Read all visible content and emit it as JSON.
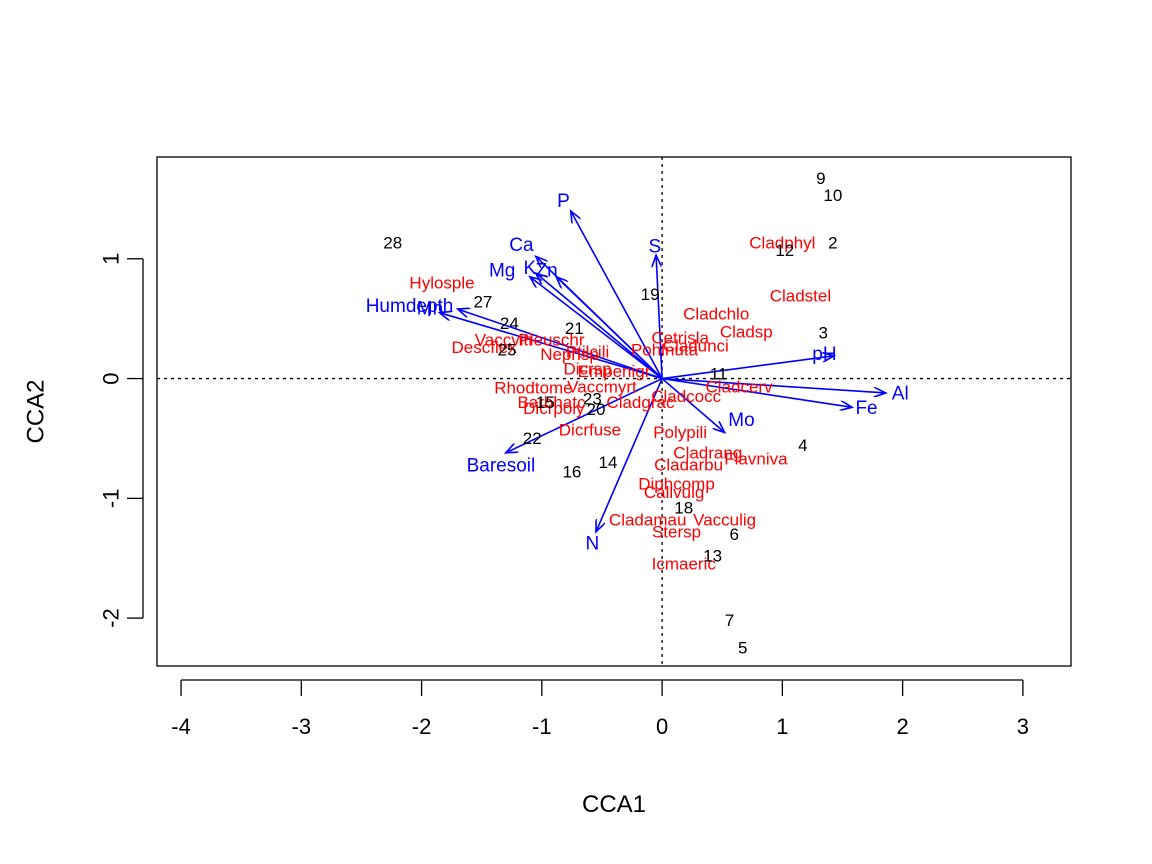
{
  "chart_data": {
    "type": "scatter",
    "title": "",
    "xlabel": "CCA1",
    "ylabel": "CCA2",
    "xlim": [
      -4.2,
      3.4
    ],
    "ylim": [
      -2.4,
      1.85
    ],
    "xticks": [
      -4,
      -3,
      -2,
      -1,
      0,
      1,
      2,
      3
    ],
    "yticks": [
      -2,
      -1,
      0,
      1
    ],
    "xtick_labels": [
      "-4",
      "-3",
      "-2",
      "-1",
      "0",
      "1",
      "2",
      "3"
    ],
    "ytick_labels": [
      "-2",
      "-1",
      "0",
      "1"
    ],
    "reference_lines": {
      "x": 0,
      "y": 0,
      "style": "dotted"
    },
    "colors": {
      "sites": "#000000",
      "species": "#ff0000",
      "environment": "#0000ff"
    },
    "sites": [
      {
        "label": "9",
        "x": 1.32,
        "y": 1.67
      },
      {
        "label": "10",
        "x": 1.42,
        "y": 1.53
      },
      {
        "label": "28",
        "x": -2.24,
        "y": 1.13
      },
      {
        "label": "2",
        "x": 1.42,
        "y": 1.13
      },
      {
        "label": "12",
        "x": 1.02,
        "y": 1.07
      },
      {
        "label": "19",
        "x": -0.1,
        "y": 0.7
      },
      {
        "label": "27",
        "x": -1.49,
        "y": 0.64
      },
      {
        "label": "24",
        "x": -1.27,
        "y": 0.46
      },
      {
        "label": "21",
        "x": -0.73,
        "y": 0.42
      },
      {
        "label": "3",
        "x": 1.34,
        "y": 0.38
      },
      {
        "label": "25",
        "x": -1.29,
        "y": 0.24
      },
      {
        "label": "11",
        "x": 0.47,
        "y": 0.04
      },
      {
        "label": "15",
        "x": -0.97,
        "y": -0.2
      },
      {
        "label": "23",
        "x": -0.58,
        "y": -0.17
      },
      {
        "label": "20",
        "x": -0.55,
        "y": -0.26
      },
      {
        "label": "22",
        "x": -1.08,
        "y": -0.5
      },
      {
        "label": "4",
        "x": 1.17,
        "y": -0.56
      },
      {
        "label": "14",
        "x": -0.45,
        "y": -0.7
      },
      {
        "label": "16",
        "x": -0.75,
        "y": -0.78
      },
      {
        "label": "18",
        "x": 0.18,
        "y": -1.08
      },
      {
        "label": "6",
        "x": 0.6,
        "y": -1.3
      },
      {
        "label": "13",
        "x": 0.42,
        "y": -1.48
      },
      {
        "label": "7",
        "x": 0.56,
        "y": -2.02
      },
      {
        "label": "5",
        "x": 0.67,
        "y": -2.25
      }
    ],
    "species": [
      {
        "label": "Cladphyl",
        "x": 1.0,
        "y": 1.13
      },
      {
        "label": "Hylosple",
        "x": -1.83,
        "y": 0.8
      },
      {
        "label": "Cladstel",
        "x": 1.15,
        "y": 0.69
      },
      {
        "label": "Cladchlo",
        "x": 0.45,
        "y": 0.54
      },
      {
        "label": "Cladsp",
        "x": 0.7,
        "y": 0.39
      },
      {
        "label": "Cetrisla",
        "x": 0.15,
        "y": 0.34
      },
      {
        "label": "Vaccviti",
        "x": -1.32,
        "y": 0.32
      },
      {
        "label": "Pleuschr",
        "x": -0.92,
        "y": 0.32
      },
      {
        "label": "Descflex",
        "x": -1.48,
        "y": 0.26
      },
      {
        "label": "Pohlnuta",
        "x": 0.02,
        "y": 0.24
      },
      {
        "label": "Ptilcili",
        "x": -0.62,
        "y": 0.22
      },
      {
        "label": "Nephsp",
        "x": -0.77,
        "y": 0.2
      },
      {
        "label": "Cladunci",
        "x": 0.28,
        "y": 0.27
      },
      {
        "label": "Dicrsp",
        "x": -0.62,
        "y": 0.08
      },
      {
        "label": "Empenigr",
        "x": -0.4,
        "y": 0.06
      },
      {
        "label": "Cladcerv",
        "x": 0.64,
        "y": -0.07
      },
      {
        "label": "Rhodtome",
        "x": -1.07,
        "y": -0.08
      },
      {
        "label": "Vaccmyrt",
        "x": -0.5,
        "y": -0.07
      },
      {
        "label": "Cladcocc",
        "x": 0.2,
        "y": -0.15
      },
      {
        "label": "Barbhatc",
        "x": -0.92,
        "y": -0.2
      },
      {
        "label": "Cladgrac",
        "x": -0.18,
        "y": -0.2
      },
      {
        "label": "Dicrpoly",
        "x": -0.9,
        "y": -0.25
      },
      {
        "label": "Dicrfuse",
        "x": -0.6,
        "y": -0.43
      },
      {
        "label": "Polypili",
        "x": 0.15,
        "y": -0.45
      },
      {
        "label": "Cladrang",
        "x": 0.38,
        "y": -0.62
      },
      {
        "label": "Flavniva",
        "x": 0.78,
        "y": -0.67
      },
      {
        "label": "Cladarbu",
        "x": 0.22,
        "y": -0.72
      },
      {
        "label": "Diphcomp",
        "x": 0.12,
        "y": -0.88
      },
      {
        "label": "Callvulg",
        "x": 0.1,
        "y": -0.95
      },
      {
        "label": "Cladamau",
        "x": -0.12,
        "y": -1.18
      },
      {
        "label": "Vacculig",
        "x": 0.52,
        "y": -1.18
      },
      {
        "label": "Stersp",
        "x": 0.12,
        "y": -1.28
      },
      {
        "label": "Icmaeric",
        "x": 0.18,
        "y": -1.55
      }
    ],
    "environment": [
      {
        "label": "P",
        "x": -0.76,
        "y": 1.4,
        "label_x": -0.82,
        "label_y": 1.48
      },
      {
        "label": "Ca",
        "x": -1.05,
        "y": 1.02,
        "label_x": -1.17,
        "label_y": 1.11
      },
      {
        "label": "S",
        "x": -0.05,
        "y": 1.03,
        "label_x": -0.06,
        "label_y": 1.1
      },
      {
        "label": "Mg",
        "x": -1.1,
        "y": 0.85,
        "label_x": -1.33,
        "label_y": 0.9
      },
      {
        "label": "Zn",
        "x": -0.88,
        "y": 0.85,
        "label_x": -0.96,
        "label_y": 0.9
      },
      {
        "label": "K",
        "x": -1.05,
        "y": 0.88,
        "label_x": -1.1,
        "label_y": 0.92
      },
      {
        "label": "Humdepth",
        "x": -1.7,
        "y": 0.58,
        "label_x": -2.1,
        "label_y": 0.6
      },
      {
        "label": "Mn",
        "x": -1.85,
        "y": 0.55,
        "label_x": -1.93,
        "label_y": 0.58
      },
      {
        "label": "pH",
        "x": 1.43,
        "y": 0.19,
        "label_x": 1.35,
        "label_y": 0.2
      },
      {
        "label": "Al",
        "x": 1.86,
        "y": -0.12,
        "label_x": 1.98,
        "label_y": -0.13
      },
      {
        "label": "Fe",
        "x": 1.58,
        "y": -0.24,
        "label_x": 1.7,
        "label_y": -0.25
      },
      {
        "label": "Mo",
        "x": 0.52,
        "y": -0.45,
        "label_x": 0.66,
        "label_y": -0.35
      },
      {
        "label": "Baresoil",
        "x": -1.3,
        "y": -0.62,
        "label_x": -1.34,
        "label_y": -0.73
      },
      {
        "label": "N",
        "x": -0.55,
        "y": -1.28,
        "label_x": -0.58,
        "label_y": -1.38
      }
    ]
  }
}
